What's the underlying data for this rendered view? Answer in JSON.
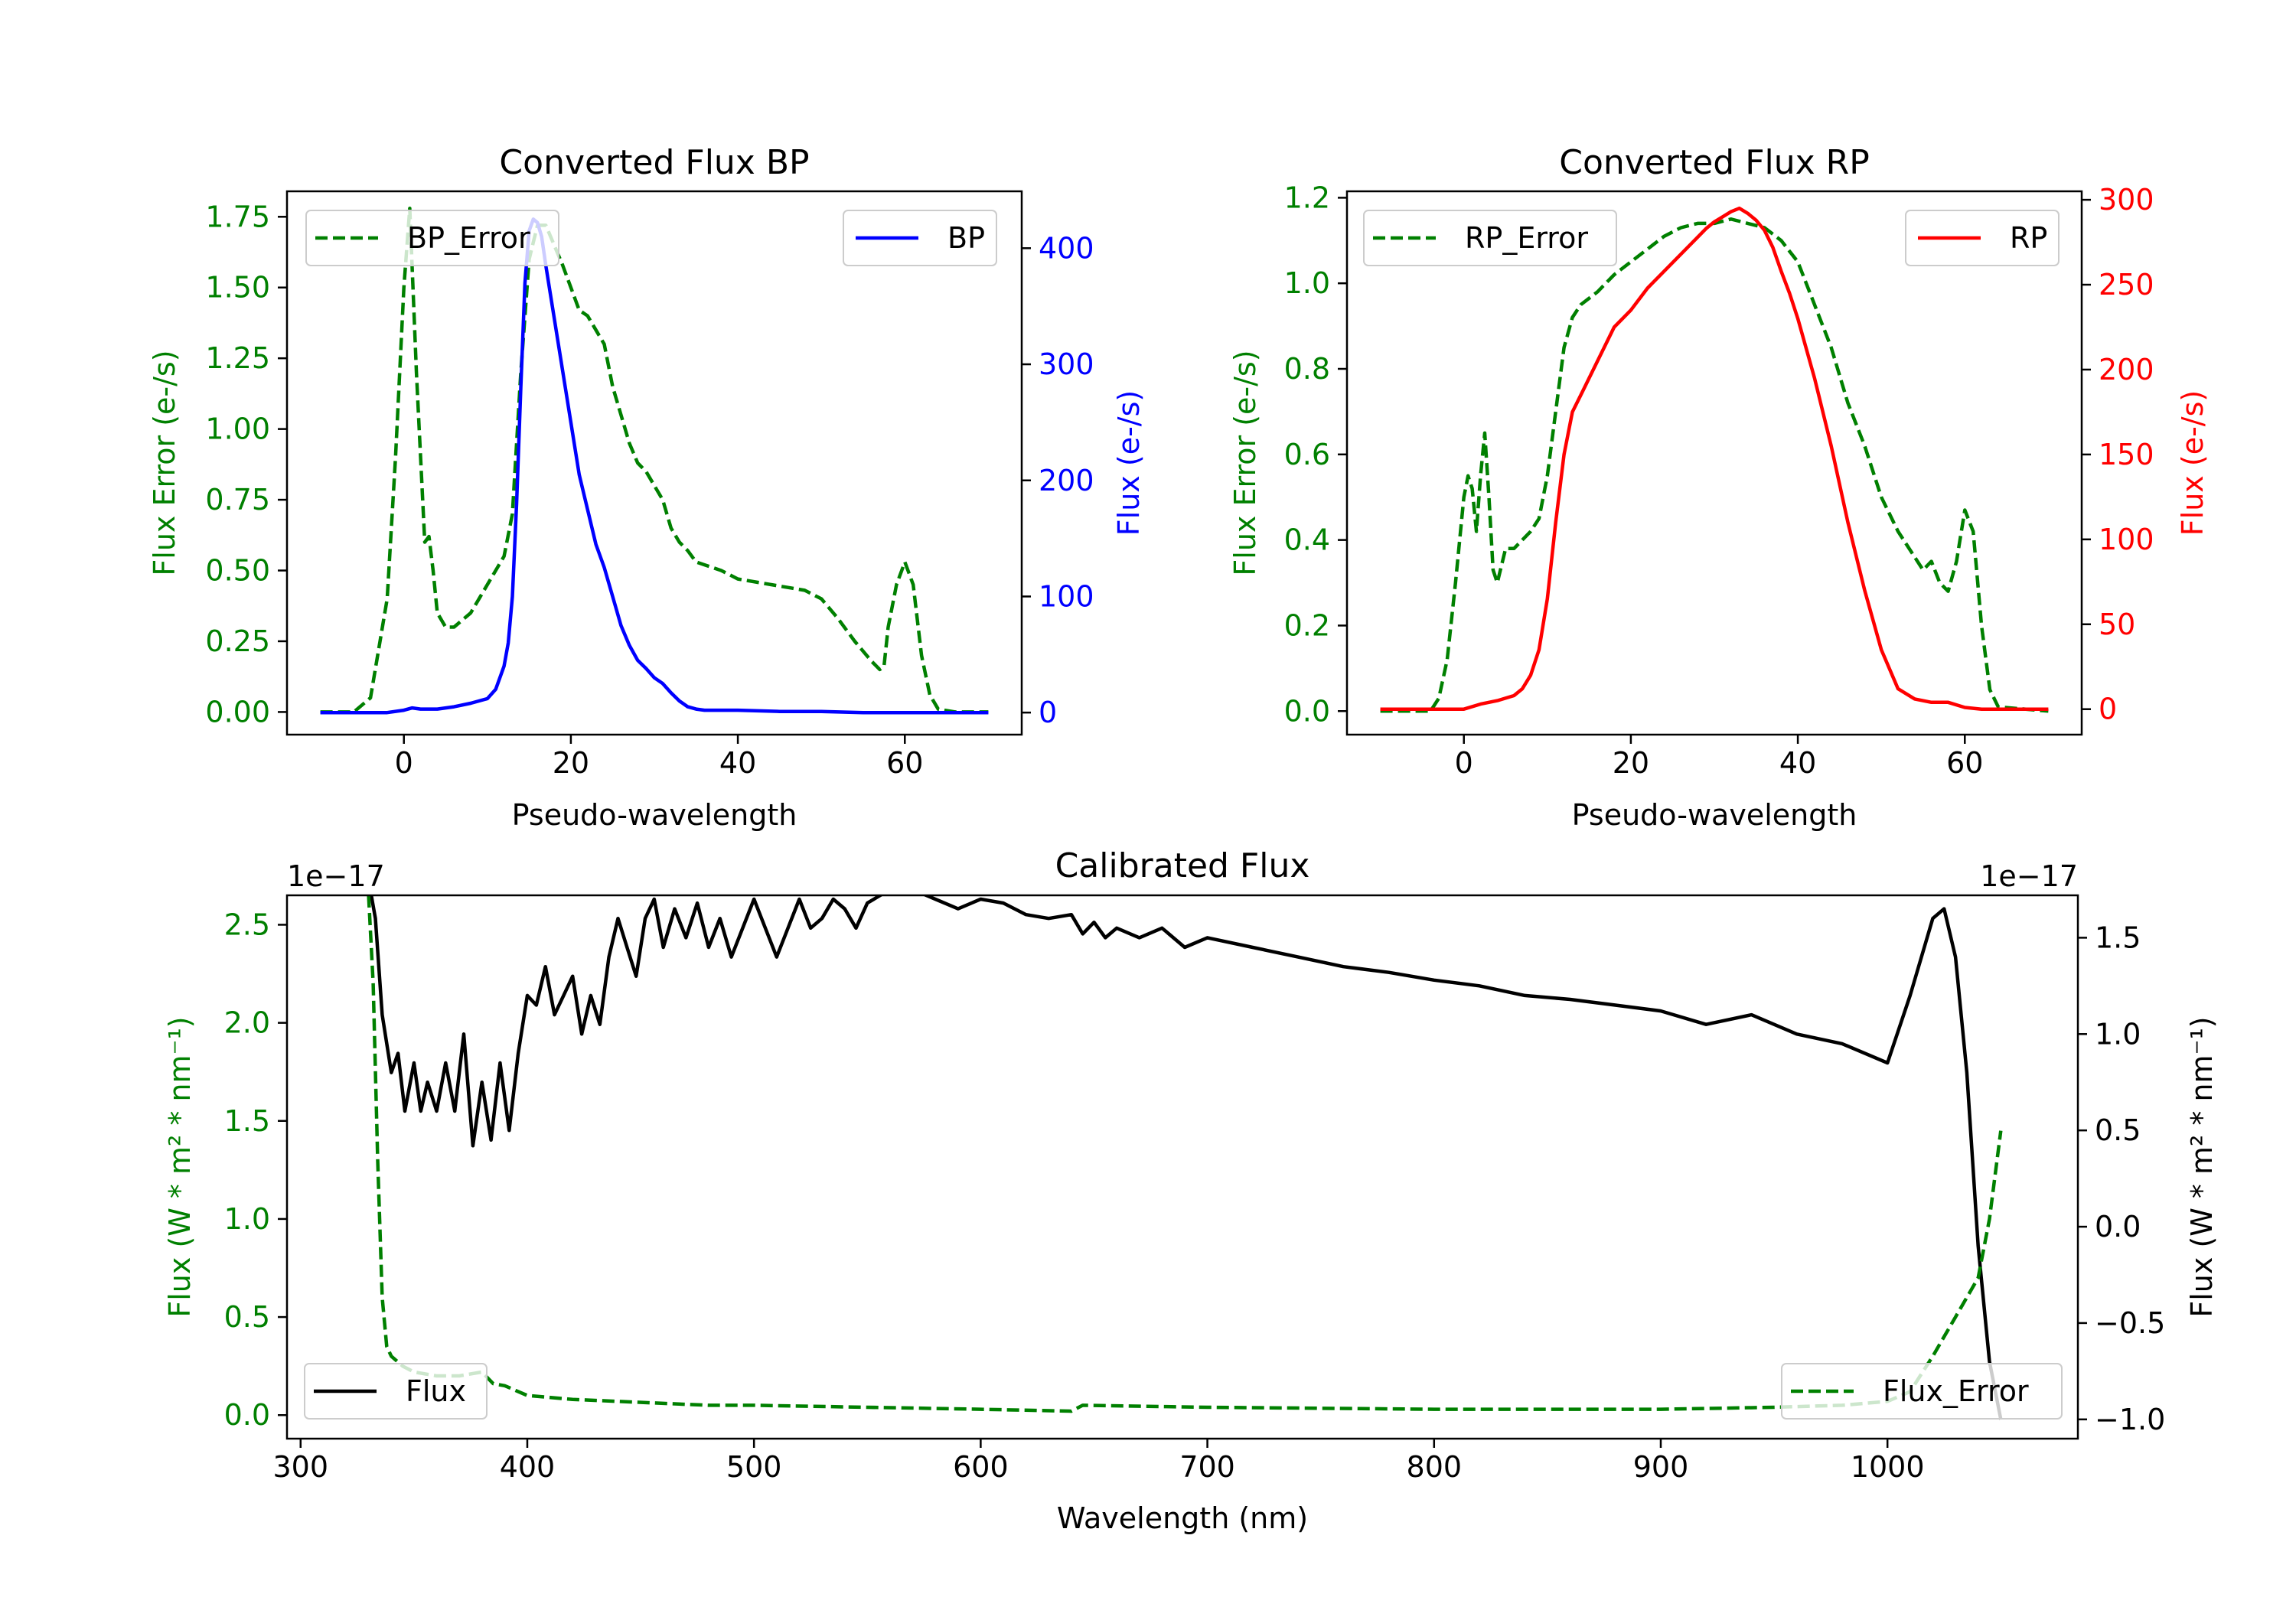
{
  "chart_data": [
    {
      "id": "bp",
      "type": "line",
      "title": "Converted Flux BP",
      "xlabel": "Pseudo-wavelength",
      "ylabel_left": "Flux Error (e-/s)",
      "ylabel_right": "Flux (e-/s)",
      "xlim": [
        -14,
        74
      ],
      "ylim_left": [
        -0.08,
        1.84
      ],
      "ylim_right": [
        -19,
        449
      ],
      "xticks": [
        0,
        20,
        40,
        60
      ],
      "yticks_left": [
        "0.00",
        "0.25",
        "0.50",
        "0.75",
        "1.00",
        "1.25",
        "1.50",
        "1.75"
      ],
      "yticks_right": [
        "0",
        "100",
        "200",
        "300",
        "400"
      ],
      "legend": [
        "BP_Error",
        "BP"
      ],
      "series": [
        {
          "name": "BP_Error",
          "axis": "left",
          "color": "#008000",
          "style": "dashed",
          "x": [
            -10,
            -6,
            -4,
            -2,
            -1,
            0,
            0.7,
            1.5,
            2.5,
            3,
            3.5,
            4,
            5,
            6,
            8,
            10,
            12,
            13,
            14,
            15,
            16,
            17,
            18,
            19,
            20,
            21,
            22,
            23,
            24,
            25,
            26,
            27,
            28,
            29,
            30,
            31,
            32,
            33,
            34,
            35,
            36,
            37,
            38,
            40,
            44,
            46,
            48,
            50,
            52,
            54,
            56,
            57,
            57.5,
            58,
            59,
            60,
            61,
            62,
            63,
            64,
            66,
            70
          ],
          "y": [
            0,
            0,
            0.05,
            0.4,
            0.9,
            1.5,
            1.78,
            1.2,
            0.6,
            0.62,
            0.5,
            0.35,
            0.3,
            0.3,
            0.35,
            0.45,
            0.55,
            0.7,
            1.2,
            1.6,
            1.72,
            1.72,
            1.65,
            1.58,
            1.5,
            1.42,
            1.4,
            1.35,
            1.3,
            1.15,
            1.05,
            0.95,
            0.88,
            0.85,
            0.8,
            0.75,
            0.65,
            0.6,
            0.57,
            0.53,
            0.52,
            0.51,
            0.5,
            0.47,
            0.45,
            0.44,
            0.43,
            0.4,
            0.33,
            0.25,
            0.18,
            0.15,
            0.16,
            0.3,
            0.45,
            0.53,
            0.45,
            0.2,
            0.06,
            0.01,
            0,
            0
          ]
        },
        {
          "name": "BP",
          "axis": "right",
          "color": "#0000ff",
          "style": "solid",
          "x": [
            -10,
            -2,
            0,
            1,
            2,
            4,
            6,
            8,
            10,
            11,
            12,
            12.5,
            13,
            13.5,
            14,
            14.5,
            15,
            15.5,
            16,
            16.5,
            17,
            18,
            19,
            20,
            21,
            22,
            23,
            24,
            25,
            26,
            27,
            28,
            29,
            30,
            31,
            32,
            33,
            34,
            35,
            36,
            38,
            40,
            45,
            50,
            55,
            60,
            65,
            70
          ],
          "y": [
            0,
            0,
            2,
            4,
            3,
            3,
            5,
            8,
            12,
            20,
            40,
            60,
            100,
            180,
            280,
            370,
            415,
            425,
            422,
            410,
            385,
            340,
            295,
            250,
            205,
            175,
            145,
            125,
            100,
            75,
            58,
            45,
            38,
            30,
            25,
            17,
            10,
            5,
            3,
            2,
            2,
            2,
            1,
            1,
            0,
            0,
            0,
            0
          ]
        }
      ]
    },
    {
      "id": "rp",
      "type": "line",
      "title": "Converted Flux RP",
      "xlabel": "Pseudo-wavelength",
      "ylabel_left": "Flux Error (e-/s)",
      "ylabel_right": "Flux (e-/s)",
      "xlim": [
        -14,
        74
      ],
      "ylim_left": [
        -0.055,
        1.215
      ],
      "ylim_right": [
        -15,
        305
      ],
      "xticks": [
        0,
        20,
        40,
        60
      ],
      "yticks_left": [
        "0.0",
        "0.2",
        "0.4",
        "0.6",
        "0.8",
        "1.0",
        "1.2"
      ],
      "yticks_right": [
        "0",
        "50",
        "100",
        "150",
        "200",
        "250",
        "300"
      ],
      "legend": [
        "RP_Error",
        "RP"
      ],
      "series": [
        {
          "name": "RP_Error",
          "axis": "left",
          "color": "#008000",
          "style": "dashed",
          "x": [
            -10,
            -4,
            -3,
            -2,
            -1,
            0,
            0.5,
            1,
            1.5,
            2,
            2.5,
            3,
            3.5,
            4,
            5,
            6,
            8,
            9,
            10,
            11,
            12,
            13,
            14,
            16,
            18,
            20,
            22,
            24,
            26,
            28,
            30,
            32,
            34,
            36,
            38,
            40,
            42,
            44,
            46,
            48,
            50,
            52,
            54,
            55,
            56,
            57,
            58,
            59,
            60,
            61,
            62,
            63,
            64,
            70
          ],
          "y": [
            0,
            0,
            0.03,
            0.12,
            0.3,
            0.5,
            0.55,
            0.52,
            0.42,
            0.55,
            0.65,
            0.5,
            0.33,
            0.3,
            0.38,
            0.38,
            0.42,
            0.45,
            0.55,
            0.7,
            0.85,
            0.92,
            0.95,
            0.98,
            1.02,
            1.05,
            1.08,
            1.11,
            1.13,
            1.14,
            1.14,
            1.15,
            1.14,
            1.13,
            1.1,
            1.05,
            0.95,
            0.85,
            0.72,
            0.62,
            0.5,
            0.42,
            0.36,
            0.33,
            0.35,
            0.3,
            0.28,
            0.35,
            0.47,
            0.42,
            0.2,
            0.05,
            0.01,
            0
          ]
        },
        {
          "name": "RP",
          "axis": "right",
          "color": "#ff0000",
          "style": "solid",
          "x": [
            -10,
            0,
            2,
            4,
            6,
            7,
            8,
            9,
            10,
            11,
            12,
            13,
            14,
            16,
            18,
            20,
            22,
            24,
            26,
            28,
            29,
            30,
            31,
            32,
            33,
            34,
            35,
            36,
            37,
            38,
            39,
            40,
            42,
            44,
            46,
            48,
            50,
            52,
            54,
            56,
            58,
            60,
            62,
            64,
            70
          ],
          "y": [
            0,
            0,
            3,
            5,
            8,
            12,
            20,
            35,
            65,
            110,
            150,
            175,
            185,
            205,
            225,
            235,
            248,
            258,
            268,
            278,
            283,
            287,
            290,
            293,
            295,
            292,
            288,
            282,
            272,
            258,
            245,
            230,
            195,
            155,
            110,
            70,
            35,
            12,
            6,
            4,
            4,
            1,
            0,
            0,
            0
          ]
        }
      ]
    },
    {
      "id": "cal",
      "type": "line",
      "title": "Calibrated Flux",
      "xlabel": "Wavelength (nm)",
      "ylabel_left": "Flux (W * m² * nm⁻¹)",
      "ylabel_right": "Flux (W * m² * nm⁻¹)",
      "offset_left": "1e−17",
      "offset_right": "1e−17",
      "xlim": [
        294,
        1084
      ],
      "ylim_left": [
        -0.12,
        2.65
      ],
      "ylim_right": [
        -1.1,
        1.72
      ],
      "xticks": [
        300,
        400,
        500,
        600,
        700,
        800,
        900,
        1000
      ],
      "yticks_left": [
        "0.0",
        "0.5",
        "1.0",
        "1.5",
        "2.0",
        "2.5"
      ],
      "yticks_right": [
        "−1.0",
        "−0.5",
        "0.0",
        "0.5",
        "1.0",
        "1.5"
      ],
      "legend": [
        "Flux",
        "Flux_Error"
      ],
      "series": [
        {
          "name": "Flux",
          "axis": "right",
          "color": "#000000",
          "style": "solid",
          "x": [
            330,
            333,
            336,
            340,
            343,
            346,
            350,
            353,
            356,
            360,
            364,
            368,
            372,
            376,
            380,
            384,
            388,
            392,
            396,
            400,
            404,
            408,
            412,
            416,
            420,
            424,
            428,
            432,
            436,
            440,
            444,
            448,
            452,
            456,
            460,
            465,
            470,
            475,
            480,
            485,
            490,
            495,
            500,
            505,
            510,
            515,
            520,
            525,
            530,
            535,
            540,
            545,
            550,
            560,
            570,
            580,
            590,
            600,
            610,
            620,
            630,
            640,
            645,
            650,
            655,
            660,
            670,
            680,
            690,
            700,
            720,
            740,
            760,
            780,
            800,
            820,
            840,
            860,
            880,
            900,
            920,
            940,
            960,
            980,
            1000,
            1010,
            1020,
            1025,
            1030,
            1035,
            1040,
            1045,
            1050
          ],
          "y": [
            1.8,
            1.6,
            1.1,
            0.8,
            0.9,
            0.6,
            0.85,
            0.6,
            0.75,
            0.6,
            0.85,
            0.6,
            1.0,
            0.42,
            0.75,
            0.45,
            0.85,
            0.5,
            0.9,
            1.2,
            1.15,
            1.35,
            1.1,
            1.2,
            1.3,
            1.0,
            1.2,
            1.05,
            1.4,
            1.6,
            1.45,
            1.3,
            1.6,
            1.7,
            1.45,
            1.65,
            1.5,
            1.68,
            1.45,
            1.6,
            1.4,
            1.55,
            1.7,
            1.55,
            1.4,
            1.55,
            1.7,
            1.55,
            1.6,
            1.7,
            1.65,
            1.55,
            1.68,
            1.75,
            1.75,
            1.7,
            1.65,
            1.7,
            1.68,
            1.62,
            1.6,
            1.62,
            1.52,
            1.58,
            1.5,
            1.55,
            1.5,
            1.55,
            1.45,
            1.5,
            1.45,
            1.4,
            1.35,
            1.32,
            1.28,
            1.25,
            1.2,
            1.18,
            1.15,
            1.12,
            1.05,
            1.1,
            1.0,
            0.95,
            0.85,
            1.2,
            1.6,
            1.65,
            1.4,
            0.8,
            -0.1,
            -0.7,
            -1.0
          ]
        },
        {
          "name": "Flux_Error",
          "axis": "left",
          "color": "#008000",
          "style": "dashed",
          "x": [
            330,
            332,
            334,
            336,
            338,
            340,
            345,
            350,
            360,
            370,
            380,
            385,
            390,
            400,
            420,
            440,
            460,
            480,
            500,
            550,
            600,
            640,
            645,
            700,
            800,
            900,
            950,
            980,
            1000,
            1010,
            1020,
            1030,
            1040,
            1045,
            1050
          ],
          "y": [
            2.65,
            2.2,
            1.3,
            0.6,
            0.35,
            0.3,
            0.25,
            0.22,
            0.2,
            0.2,
            0.22,
            0.16,
            0.15,
            0.1,
            0.08,
            0.07,
            0.06,
            0.05,
            0.05,
            0.04,
            0.03,
            0.02,
            0.05,
            0.04,
            0.03,
            0.03,
            0.04,
            0.05,
            0.07,
            0.12,
            0.3,
            0.5,
            0.7,
            1.0,
            1.45
          ]
        }
      ]
    }
  ]
}
